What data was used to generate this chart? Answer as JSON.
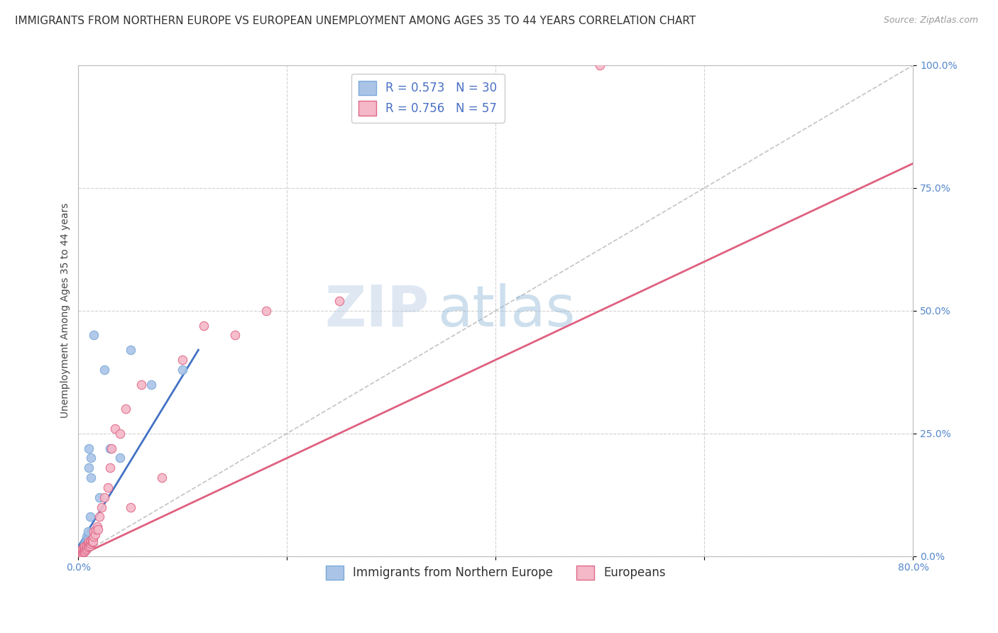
{
  "title": "IMMIGRANTS FROM NORTHERN EUROPE VS EUROPEAN UNEMPLOYMENT AMONG AGES 35 TO 44 YEARS CORRELATION CHART",
  "source": "Source: ZipAtlas.com",
  "xlabel": "",
  "ylabel": "Unemployment Among Ages 35 to 44 years",
  "xlim": [
    0,
    0.8
  ],
  "ylim": [
    0,
    1.0
  ],
  "xtick_labels": [
    "0.0%",
    "",
    "",
    "",
    "80.0%"
  ],
  "xtick_values": [
    0.0,
    0.2,
    0.4,
    0.6,
    0.8
  ],
  "ytick_labels": [
    "0.0%",
    "25.0%",
    "50.0%",
    "75.0%",
    "100.0%"
  ],
  "ytick_values": [
    0.0,
    0.25,
    0.5,
    0.75,
    1.0
  ],
  "blue_color": "#aac4e8",
  "blue_edge_color": "#7aaad8",
  "blue_line_color": "#4472c4",
  "pink_color": "#f4b8c8",
  "pink_edge_color": "#e06888",
  "pink_line_color": "#e06080",
  "legend_R_blue": "R = 0.573",
  "legend_N_blue": "N = 30",
  "legend_R_pink": "R = 0.756",
  "legend_N_pink": "N = 57",
  "legend_label_blue": "Immigrants from Northern Europe",
  "legend_label_pink": "Europeans",
  "watermark_zip": "ZIP",
  "watermark_atlas": "atlas",
  "grid_color": "#cccccc",
  "blue_scatter_x": [
    0.001,
    0.002,
    0.002,
    0.003,
    0.003,
    0.004,
    0.004,
    0.005,
    0.005,
    0.006,
    0.006,
    0.007,
    0.007,
    0.008,
    0.008,
    0.009,
    0.009,
    0.01,
    0.01,
    0.011,
    0.012,
    0.012,
    0.015,
    0.02,
    0.025,
    0.03,
    0.04,
    0.05,
    0.07,
    0.1
  ],
  "blue_scatter_y": [
    0.005,
    0.003,
    0.008,
    0.005,
    0.01,
    0.007,
    0.015,
    0.012,
    0.02,
    0.018,
    0.025,
    0.02,
    0.03,
    0.025,
    0.04,
    0.035,
    0.05,
    0.18,
    0.22,
    0.08,
    0.16,
    0.2,
    0.45,
    0.12,
    0.38,
    0.22,
    0.2,
    0.42,
    0.35,
    0.38
  ],
  "pink_scatter_x": [
    0.001,
    0.001,
    0.002,
    0.002,
    0.002,
    0.003,
    0.003,
    0.003,
    0.004,
    0.004,
    0.004,
    0.005,
    0.005,
    0.005,
    0.006,
    0.006,
    0.006,
    0.007,
    0.007,
    0.008,
    0.008,
    0.009,
    0.009,
    0.01,
    0.01,
    0.01,
    0.011,
    0.011,
    0.012,
    0.012,
    0.013,
    0.013,
    0.014,
    0.015,
    0.015,
    0.016,
    0.017,
    0.018,
    0.019,
    0.02,
    0.022,
    0.025,
    0.028,
    0.03,
    0.032,
    0.035,
    0.04,
    0.045,
    0.05,
    0.06,
    0.08,
    0.1,
    0.12,
    0.15,
    0.18,
    0.25,
    0.5
  ],
  "pink_scatter_y": [
    0.003,
    0.006,
    0.004,
    0.008,
    0.01,
    0.005,
    0.009,
    0.012,
    0.007,
    0.011,
    0.015,
    0.008,
    0.013,
    0.018,
    0.01,
    0.015,
    0.02,
    0.012,
    0.018,
    0.015,
    0.022,
    0.018,
    0.025,
    0.02,
    0.025,
    0.03,
    0.022,
    0.028,
    0.025,
    0.032,
    0.028,
    0.035,
    0.03,
    0.04,
    0.05,
    0.045,
    0.055,
    0.06,
    0.055,
    0.08,
    0.1,
    0.12,
    0.14,
    0.18,
    0.22,
    0.26,
    0.25,
    0.3,
    0.1,
    0.35,
    0.16,
    0.4,
    0.47,
    0.45,
    0.5,
    0.52,
    1.0
  ],
  "blue_line_x": [
    0.0,
    0.115
  ],
  "blue_line_y": [
    0.02,
    0.42
  ],
  "pink_line_x": [
    0.0,
    0.8
  ],
  "pink_line_y": [
    0.0,
    0.8
  ],
  "diag_line_x": [
    0.0,
    0.8
  ],
  "diag_line_y": [
    0.0,
    1.0
  ],
  "title_fontsize": 11,
  "axis_label_fontsize": 10,
  "tick_fontsize": 10,
  "legend_fontsize": 12
}
